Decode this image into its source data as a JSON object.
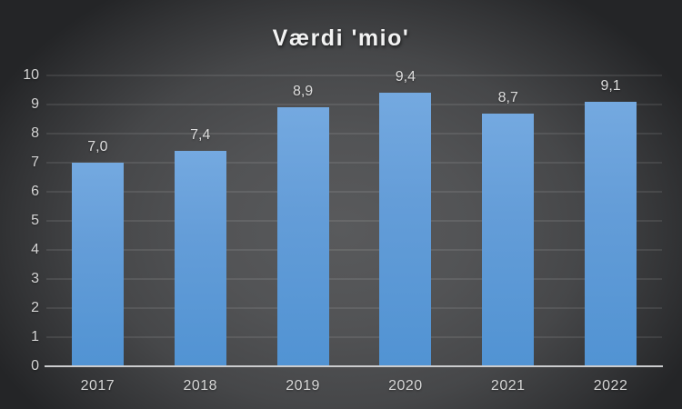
{
  "chart_data": {
    "type": "bar",
    "title": "Værdi 'mio'",
    "categories": [
      "2017",
      "2018",
      "2019",
      "2020",
      "2021",
      "2022"
    ],
    "values": [
      7.0,
      7.4,
      8.9,
      9.4,
      8.7,
      9.1
    ],
    "value_labels": [
      "7,0",
      "7,4",
      "8,9",
      "9,4",
      "8,7",
      "9,1"
    ],
    "xlabel": "",
    "ylabel": "",
    "ylim": [
      0,
      10
    ],
    "yticks": [
      0,
      1,
      2,
      3,
      4,
      5,
      6,
      7,
      8,
      9,
      10
    ],
    "grid": true,
    "legend": false,
    "data_labels": true,
    "colors": {
      "bar_fill_top": "#74A9E0",
      "bar_fill_bottom": "#5193D3",
      "background_center": "#58595B",
      "background_edge": "#242527",
      "gridline": "rgba(255,255,255,0.09)",
      "axis_line": "#CBCCCE",
      "tick_label": "#D6D6D6",
      "data_label": "#DDDDDD",
      "title": "#F3F3F3"
    }
  }
}
